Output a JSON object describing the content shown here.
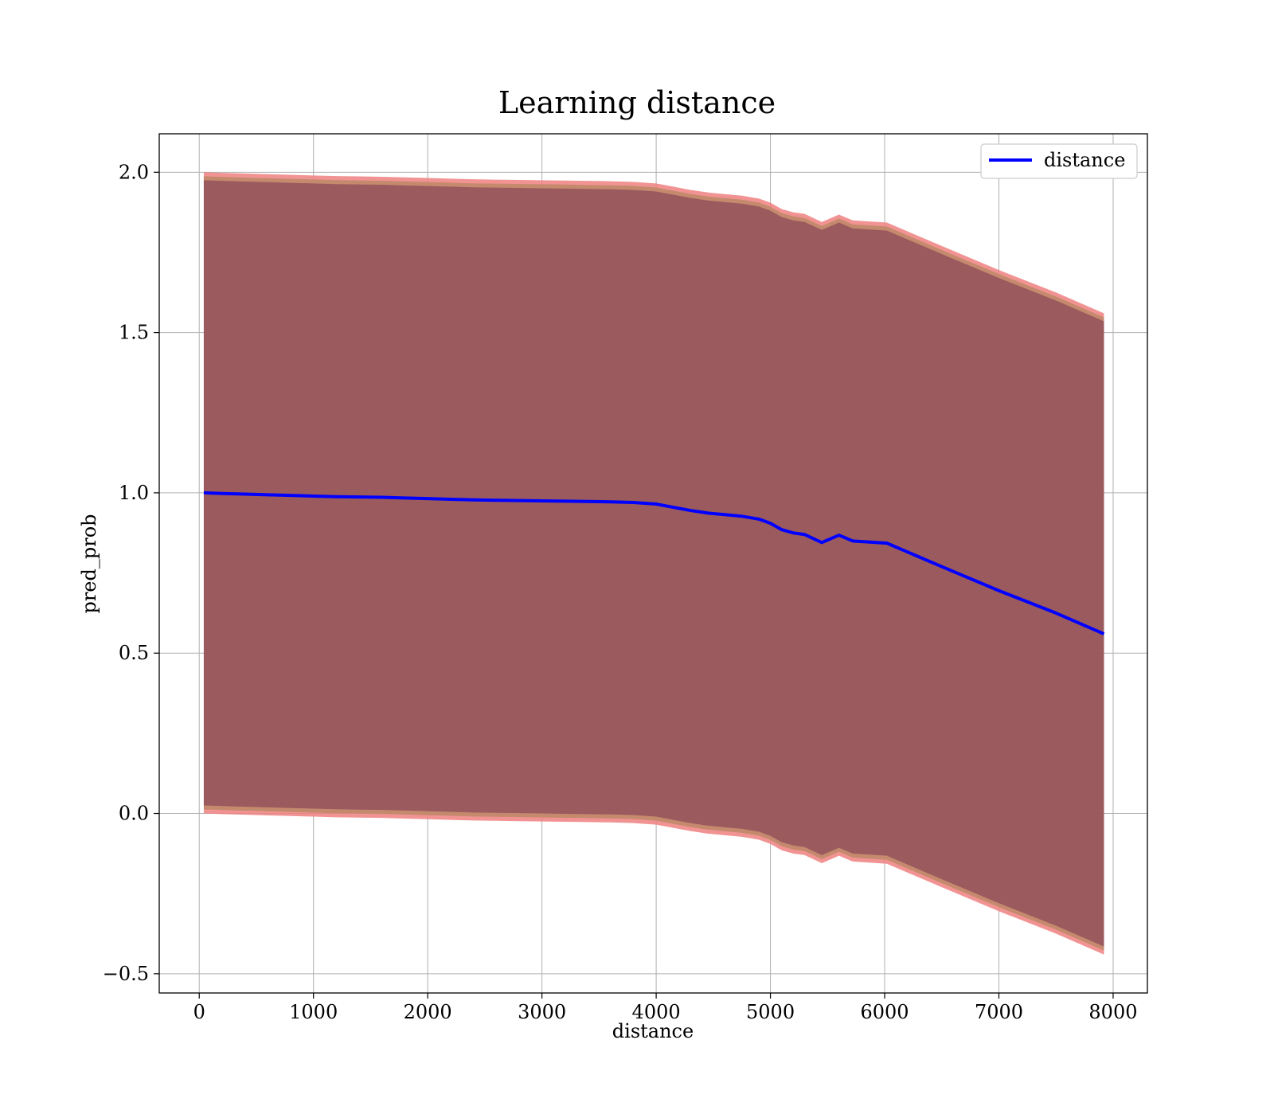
{
  "chart_data": {
    "type": "line",
    "title": "Learning distance",
    "xlabel": "distance",
    "ylabel": "pred_prob",
    "xlim": [
      -350,
      8300
    ],
    "ylim": [
      -0.56,
      2.12
    ],
    "xticks": [
      0,
      1000,
      2000,
      3000,
      4000,
      5000,
      6000,
      7000,
      8000
    ],
    "xtick_labels": [
      "0",
      "1000",
      "2000",
      "3000",
      "4000",
      "5000",
      "6000",
      "7000",
      "8000"
    ],
    "yticks": [
      -0.5,
      0.0,
      0.5,
      1.0,
      1.5,
      2.0
    ],
    "ytick_labels": [
      "−0.5",
      "0.0",
      "0.5",
      "1.0",
      "1.5",
      "2.0"
    ],
    "grid": true,
    "legend": {
      "position": "top-right",
      "entries": [
        "distance"
      ]
    },
    "colors": {
      "line": "#0000ff",
      "band_outer": "#f08080",
      "band_mid": "#c08a6a",
      "band_inner": "#8b4a5a"
    },
    "series": [
      {
        "name": "distance",
        "x": [
          40,
          200,
          400,
          600,
          800,
          1000,
          1200,
          1400,
          1600,
          1800,
          2000,
          2200,
          2400,
          2600,
          2800,
          3000,
          3200,
          3400,
          3600,
          3800,
          4000,
          4150,
          4300,
          4450,
          4600,
          4750,
          4900,
          5000,
          5100,
          5200,
          5300,
          5450,
          5600,
          5720,
          6020,
          6500,
          7000,
          7500,
          7920
        ],
        "values": [
          1.0,
          0.998,
          0.996,
          0.994,
          0.992,
          0.99,
          0.988,
          0.987,
          0.986,
          0.984,
          0.982,
          0.98,
          0.978,
          0.977,
          0.976,
          0.975,
          0.974,
          0.973,
          0.972,
          0.97,
          0.965,
          0.955,
          0.945,
          0.937,
          0.932,
          0.927,
          0.918,
          0.905,
          0.885,
          0.875,
          0.87,
          0.845,
          0.868,
          0.85,
          0.843,
          0.77,
          0.695,
          0.625,
          0.56
        ]
      }
    ],
    "band": {
      "x": [
        40,
        200,
        400,
        600,
        800,
        1000,
        1200,
        1400,
        1600,
        1800,
        2000,
        2200,
        2400,
        2600,
        2800,
        3000,
        3200,
        3400,
        3600,
        3800,
        4000,
        4150,
        4300,
        4450,
        4600,
        4750,
        4900,
        5000,
        5100,
        5200,
        5300,
        5450,
        5600,
        5720,
        6020,
        6500,
        7000,
        7500,
        7920
      ],
      "outer_upper": [
        2.0,
        1.998,
        1.996,
        1.994,
        1.992,
        1.99,
        1.988,
        1.987,
        1.986,
        1.984,
        1.982,
        1.98,
        1.978,
        1.977,
        1.976,
        1.975,
        1.974,
        1.973,
        1.972,
        1.97,
        1.965,
        1.955,
        1.945,
        1.937,
        1.932,
        1.927,
        1.918,
        1.905,
        1.885,
        1.875,
        1.87,
        1.845,
        1.868,
        1.85,
        1.843,
        1.77,
        1.695,
        1.625,
        1.56
      ],
      "outer_lower": [
        0.0,
        -0.002,
        -0.004,
        -0.006,
        -0.008,
        -0.01,
        -0.012,
        -0.013,
        -0.014,
        -0.016,
        -0.018,
        -0.02,
        -0.022,
        -0.023,
        -0.024,
        -0.025,
        -0.026,
        -0.027,
        -0.028,
        -0.03,
        -0.035,
        -0.045,
        -0.055,
        -0.063,
        -0.068,
        -0.073,
        -0.082,
        -0.095,
        -0.115,
        -0.125,
        -0.13,
        -0.155,
        -0.132,
        -0.15,
        -0.157,
        -0.23,
        -0.305,
        -0.375,
        -0.44
      ],
      "inner_upper": [
        1.975,
        1.973,
        1.971,
        1.969,
        1.967,
        1.965,
        1.963,
        1.962,
        1.961,
        1.959,
        1.957,
        1.955,
        1.953,
        1.952,
        1.951,
        1.95,
        1.949,
        1.948,
        1.947,
        1.945,
        1.94,
        1.93,
        1.92,
        1.912,
        1.907,
        1.902,
        1.893,
        1.88,
        1.86,
        1.85,
        1.845,
        1.82,
        1.843,
        1.825,
        1.818,
        1.745,
        1.67,
        1.6,
        1.535
      ],
      "inner_lower": [
        0.025,
        0.023,
        0.021,
        0.019,
        0.017,
        0.015,
        0.013,
        0.012,
        0.011,
        0.009,
        0.007,
        0.005,
        0.003,
        0.002,
        0.001,
        0.0,
        -0.001,
        -0.002,
        -0.003,
        -0.005,
        -0.01,
        -0.02,
        -0.03,
        -0.038,
        -0.043,
        -0.048,
        -0.057,
        -0.07,
        -0.09,
        -0.1,
        -0.105,
        -0.13,
        -0.107,
        -0.125,
        -0.132,
        -0.205,
        -0.28,
        -0.35,
        -0.415
      ]
    }
  }
}
